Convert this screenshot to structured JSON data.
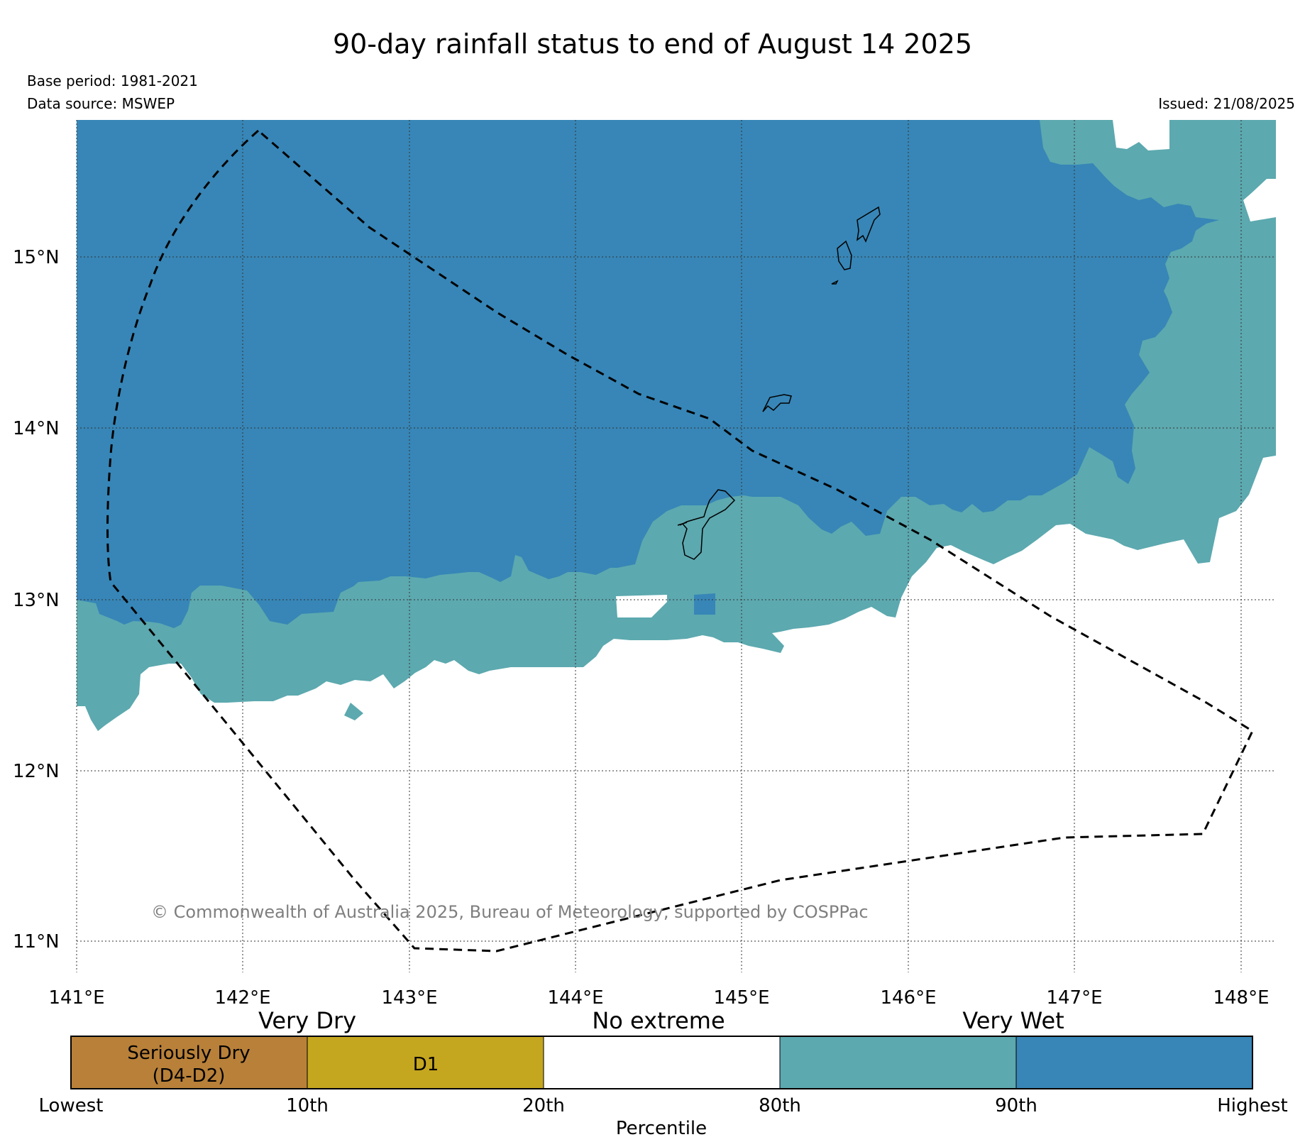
{
  "title": "90-day rainfall status to end of August 14 2025",
  "base_period": "Base period: 1981-2021",
  "data_source": "Data source: MSWEP",
  "issued": "Issued: 21/08/2025",
  "copyright": "© Commonwealth of Australia 2025, Bureau of Meteorology, supported by COSPPac",
  "map": {
    "lon_range": [
      141,
      148.2
    ],
    "lat_range": [
      10.8,
      15.8
    ],
    "lat_ticks": [
      "11°N",
      "12°N",
      "13°N",
      "14°N",
      "15°N"
    ],
    "lon_ticks": [
      "141°E",
      "142°E",
      "143°E",
      "144°E",
      "145°E",
      "146°E",
      "147°E",
      "148°E"
    ],
    "gridlines": true,
    "colors": {
      "very_much_above": "#3786b7",
      "above": "#5ca9af",
      "no_extreme": "#ffffff",
      "d1": "#c5a61f",
      "seriously_dry": "#b88039"
    },
    "boundary_style": "dashed"
  },
  "legend": {
    "category_headers": [
      "Very Dry",
      "No extreme",
      "Very Wet"
    ],
    "segments": [
      {
        "label_line1": "Seriously Dry",
        "label_line2": "(D4-D2)",
        "color": "#b88039"
      },
      {
        "label_line1": "D1",
        "label_line2": "",
        "color": "#c5a61f"
      },
      {
        "label_line1": "",
        "label_line2": "",
        "color": "#ffffff"
      },
      {
        "label_line1": "",
        "label_line2": "",
        "color": "#5ca9af"
      },
      {
        "label_line1": "",
        "label_line2": "",
        "color": "#3786b7"
      }
    ],
    "percentile_ticks": [
      "Lowest",
      "10th",
      "20th",
      "80th",
      "90th",
      "Highest"
    ],
    "axis_label": "Percentile"
  }
}
